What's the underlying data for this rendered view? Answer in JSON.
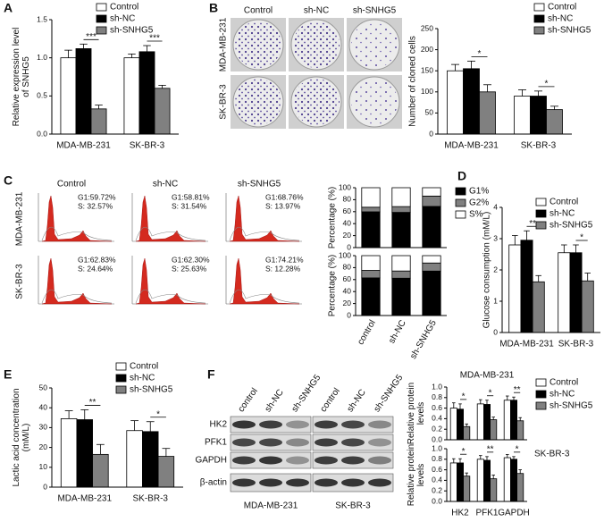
{
  "panels": [
    "A",
    "B",
    "C",
    "D",
    "E",
    "F"
  ],
  "colony": {
    "columns": [
      "Control",
      "sh-NC",
      "sh-SNHG5"
    ],
    "rows": [
      "MDA-MB-231",
      "SK-BR-3"
    ]
  },
  "flow": {
    "columns": [
      "Control",
      "sh-NC",
      "sh-SNHG5"
    ],
    "rows": [
      "MDA-MB-231",
      "SK-BR-3"
    ],
    "cells": [
      [
        [
          "G1:59.72%",
          "S: 32.57%"
        ],
        [
          "G1:58.81%",
          "S: 31.54%"
        ],
        [
          "G1:68.76%",
          "S: 13.97%"
        ]
      ],
      [
        [
          "G1:62.83%",
          "S: 24.64%"
        ],
        [
          "G1:62.30%",
          "S: 25.63%"
        ],
        [
          "G1:74.21%",
          "S: 12.28%"
        ]
      ]
    ]
  },
  "blot": {
    "lanes": [
      "control",
      "sh-NC",
      "sh-SNHG5",
      "control",
      "sh-NC",
      "sh-SNHG5"
    ],
    "proteins": [
      "HK2",
      "PFK1",
      "GAPDH",
      "β-actin"
    ],
    "groups": [
      "MDA-MB-231",
      "SK-BR-3"
    ]
  },
  "chart_data": [
    {
      "type": "bar",
      "ylabel": [
        "Relative expression level",
        "of SNHG5"
      ],
      "categories": [
        "MDA-MB-231",
        "SK-BR-3"
      ],
      "series": [
        {
          "name": "Control",
          "color": "#ffffff",
          "values": [
            1.0,
            1.0
          ],
          "errors": [
            0.1,
            0.05
          ]
        },
        {
          "name": "sh-NC",
          "color": "#000000",
          "values": [
            1.12,
            1.08
          ],
          "errors": [
            0.06,
            0.08
          ]
        },
        {
          "name": "sh-SNHG5",
          "color": "#808080",
          "values": [
            0.33,
            0.6
          ],
          "errors": [
            0.05,
            0.04
          ]
        }
      ],
      "annotations": [
        "***",
        "***"
      ],
      "ylim": [
        0,
        1.5
      ],
      "yticks": [
        {
          "value": 0,
          "label": "0.0"
        },
        0.5,
        {
          "value": 1,
          "label": "1.0"
        },
        1.5
      ]
    },
    {
      "type": "bar",
      "ylabel": [
        "Number of cloned cells"
      ],
      "categories": [
        "MDA-MB-231",
        "SK-BR-3"
      ],
      "series": [
        {
          "name": "Control",
          "color": "#ffffff",
          "values": [
            150,
            90
          ],
          "errors": [
            15,
            15
          ]
        },
        {
          "name": "sh-NC",
          "color": "#000000",
          "values": [
            155,
            90
          ],
          "errors": [
            18,
            12
          ]
        },
        {
          "name": "sh-SNHG5",
          "color": "#808080",
          "values": [
            100,
            58
          ],
          "errors": [
            17,
            8
          ]
        }
      ],
      "annotations": [
        "*",
        "*"
      ],
      "ylim": [
        0,
        250
      ],
      "yticks": [
        0,
        50,
        100,
        150,
        200,
        250
      ]
    },
    {
      "type": "stacked_bar",
      "ylabel": [
        "Percentage (%)"
      ],
      "series": [
        {
          "name": "G1%",
          "color": "#000000",
          "values": [
            59.72,
            58.81,
            68.76
          ]
        },
        {
          "name": "G2%",
          "color": "#808080",
          "values": [
            7.71,
            9.65,
            17.27
          ]
        },
        {
          "name": "S%",
          "color": "#ffffff",
          "values": [
            32.57,
            31.54,
            13.97
          ]
        }
      ],
      "ylim": [
        0,
        100
      ],
      "yticks": [
        0,
        20,
        40,
        60,
        80,
        100
      ]
    },
    {
      "type": "stacked_bar",
      "ylabel": [
        "Percentage (%)"
      ],
      "categories": [
        "control",
        "sh-NC",
        "sh-SNHG5"
      ],
      "series": [
        {
          "color": "#000000",
          "values": [
            62.83,
            62.3,
            74.21
          ]
        },
        {
          "color": "#808080",
          "values": [
            12.53,
            12.07,
            13.51
          ]
        },
        {
          "color": "#ffffff",
          "values": [
            24.64,
            25.63,
            12.28
          ]
        }
      ],
      "ylim": [
        0,
        100
      ],
      "yticks": [
        0,
        20,
        40,
        60,
        80,
        100
      ]
    },
    {
      "type": "bar",
      "ylabel": [
        "Glucose consumption (mM/L)"
      ],
      "categories": [
        "MDA-MB-231",
        "SK-BR-3"
      ],
      "series": [
        {
          "name": "Control",
          "color": "#ffffff",
          "values": [
            2.8,
            2.55
          ],
          "errors": [
            0.3,
            0.25
          ]
        },
        {
          "name": "sh-NC",
          "color": "#000000",
          "values": [
            2.95,
            2.55
          ],
          "errors": [
            0.3,
            0.25
          ]
        },
        {
          "name": "sh-SNHG5",
          "color": "#808080",
          "values": [
            1.62,
            1.65
          ],
          "errors": [
            0.2,
            0.25
          ]
        }
      ],
      "annotations": [
        "**",
        "*"
      ],
      "ylim": [
        0,
        4
      ],
      "yticks": [
        0,
        1,
        2,
        3,
        4
      ]
    },
    {
      "type": "bar",
      "ylabel": [
        "Lactic acid concentration",
        "(mM/L)"
      ],
      "categories": [
        "MDA-MB-231",
        "SK-BR-3"
      ],
      "series": [
        {
          "name": "Control",
          "color": "#ffffff",
          "values": [
            34.5,
            28.5
          ],
          "errors": [
            4,
            5
          ]
        },
        {
          "name": "sh-NC",
          "color": "#000000",
          "values": [
            34,
            28
          ],
          "errors": [
            5,
            5
          ]
        },
        {
          "name": "sh-SNHG5",
          "color": "#808080",
          "values": [
            16.5,
            15.5
          ],
          "errors": [
            5,
            4
          ]
        }
      ],
      "annotations": [
        "**",
        "*"
      ],
      "ylim": [
        0,
        50
      ],
      "yticks": [
        0,
        10,
        20,
        30,
        40,
        50
      ]
    },
    {
      "type": "bar",
      "title": "MDA-MB-231",
      "ylabel": [
        "Relative protein",
        "levels"
      ],
      "series": [
        {
          "name": "Control",
          "color": "#ffffff",
          "values": [
            0.6,
            0.68,
            0.75
          ],
          "errors": [
            0.1,
            0.08,
            0.08
          ]
        },
        {
          "name": "sh-NC",
          "color": "#000000",
          "values": [
            0.58,
            0.67,
            0.75
          ],
          "errors": [
            0.1,
            0.08,
            0.06
          ]
        },
        {
          "name": "sh-SNHG5",
          "color": "#808080",
          "values": [
            0.25,
            0.38,
            0.36
          ],
          "errors": [
            0.05,
            0.05,
            0.06
          ]
        }
      ],
      "annotations": [
        "*",
        "*",
        "**"
      ],
      "ylim": [
        0,
        1
      ],
      "yticks": [
        {
          "value": 0,
          "label": "0.0"
        },
        0.2,
        0.4,
        0.6,
        0.8,
        {
          "value": 1,
          "label": "1.0"
        }
      ]
    },
    {
      "type": "bar",
      "title": "SK-BR-3",
      "ylabel": [
        "Relative protein",
        "levels"
      ],
      "categories": [
        "HK2",
        "PFK1",
        "GAPDH"
      ],
      "series": [
        {
          "color": "#ffffff",
          "values": [
            0.73,
            0.8,
            0.83
          ],
          "errors": [
            0.08,
            0.07,
            0.06
          ]
        },
        {
          "color": "#000000",
          "values": [
            0.73,
            0.78,
            0.8
          ],
          "errors": [
            0.08,
            0.07,
            0.05
          ]
        },
        {
          "color": "#808080",
          "values": [
            0.48,
            0.43,
            0.53
          ],
          "errors": [
            0.06,
            0.07,
            0.07
          ]
        }
      ],
      "annotations": [
        "*",
        "**",
        "*"
      ],
      "ylim": [
        0,
        1
      ],
      "yticks": [
        {
          "value": 0,
          "label": "0.0"
        },
        0.2,
        0.4,
        0.6,
        0.8,
        {
          "value": 1,
          "label": "1.0"
        }
      ]
    }
  ]
}
